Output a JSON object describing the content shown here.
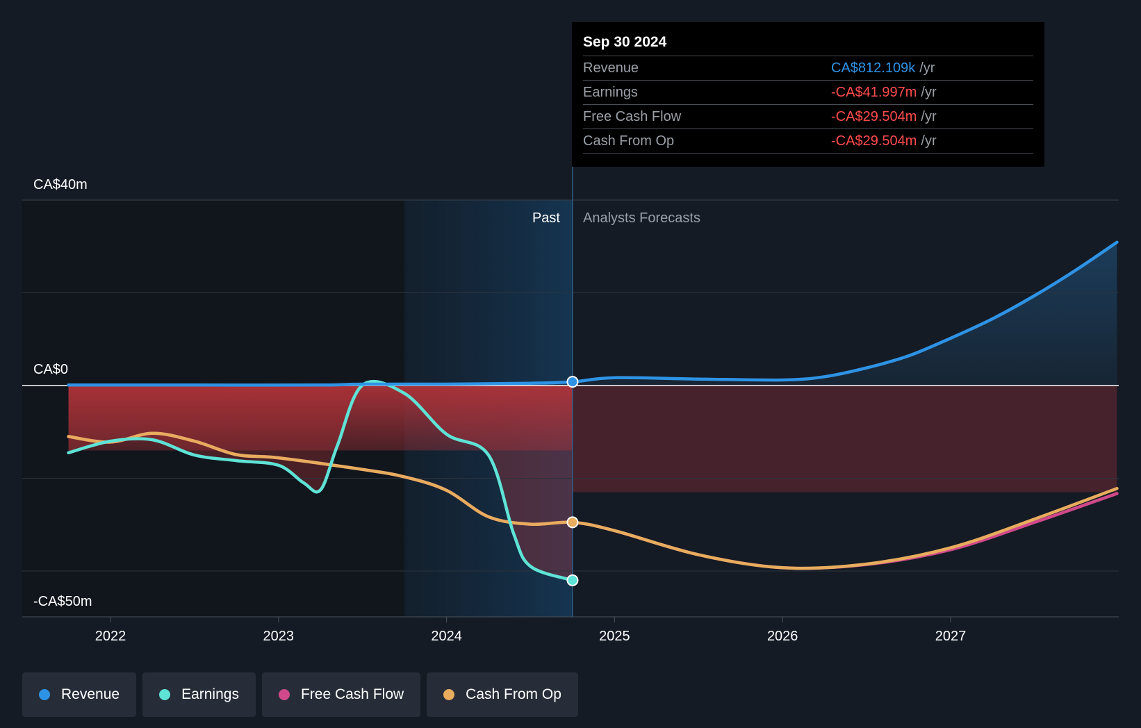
{
  "colors": {
    "background": "#151b24",
    "revenue": "#2e93e5",
    "earnings": "#5ee3d6",
    "free_cash_flow": "#d0498b",
    "cash_from_op": "#e8ac5e",
    "negative": "#ff4c4c"
  },
  "tooltip": {
    "date": "Sep 30 2024",
    "rows": [
      {
        "label": "Revenue",
        "value": "CA$812.109k",
        "unit": "/yr",
        "tone": "revenue"
      },
      {
        "label": "Earnings",
        "value": "-CA$41.997m",
        "unit": "/yr",
        "tone": "negative"
      },
      {
        "label": "Free Cash Flow",
        "value": "-CA$29.504m",
        "unit": "/yr",
        "tone": "negative"
      },
      {
        "label": "Cash From Op",
        "value": "-CA$29.504m",
        "unit": "/yr",
        "tone": "negative"
      }
    ]
  },
  "legend": [
    {
      "label": "Revenue",
      "color": "#2e93e5"
    },
    {
      "label": "Earnings",
      "color": "#5ee3d6"
    },
    {
      "label": "Free Cash Flow",
      "color": "#d0498b"
    },
    {
      "label": "Cash From Op",
      "color": "#e8ac5e"
    }
  ],
  "chart_data": {
    "type": "line",
    "title": "",
    "xlabel": "",
    "ylabel": "",
    "y_tick_labels": [
      "CA$40m",
      "CA$0",
      "-CA$50m"
    ],
    "y_ticks": [
      40,
      0,
      -50
    ],
    "ylim": [
      -50,
      40
    ],
    "xlim": [
      2021.6,
      2027.99
    ],
    "x_ticks": [
      2022,
      2023,
      2024,
      2025,
      2026,
      2027
    ],
    "x_tick_labels": [
      "2022",
      "2023",
      "2024",
      "2025",
      "2026",
      "2027"
    ],
    "past_label": "Past",
    "forecast_label": "Analysts Forecasts",
    "divider_x": 2024.75,
    "shaded_past_start": 2023.75,
    "series": [
      {
        "name": "Revenue",
        "key": "revenue",
        "points": [
          [
            2021.75,
            0.1
          ],
          [
            2022.5,
            0.1
          ],
          [
            2023.25,
            0.1
          ],
          [
            2023.5,
            0.3
          ],
          [
            2024.0,
            0.3
          ],
          [
            2024.5,
            0.5
          ],
          [
            2024.75,
            0.8
          ],
          [
            2025.0,
            1.7
          ],
          [
            2025.5,
            1.4
          ],
          [
            2026.0,
            1.2
          ],
          [
            2026.25,
            1.9
          ],
          [
            2026.5,
            3.8
          ],
          [
            2026.75,
            6.4
          ],
          [
            2027.0,
            10.2
          ],
          [
            2027.25,
            14.4
          ],
          [
            2027.5,
            19.4
          ],
          [
            2027.75,
            25.0
          ],
          [
            2027.99,
            30.9
          ]
        ]
      },
      {
        "name": "Earnings",
        "key": "earnings",
        "points": [
          [
            2021.75,
            -14.5
          ],
          [
            2022.0,
            -12.0
          ],
          [
            2022.25,
            -11.7
          ],
          [
            2022.5,
            -15.0
          ],
          [
            2022.75,
            -16.2
          ],
          [
            2023.0,
            -17.2
          ],
          [
            2023.15,
            -21.0
          ],
          [
            2023.25,
            -22.5
          ],
          [
            2023.35,
            -13.0
          ],
          [
            2023.5,
            0.1
          ],
          [
            2023.75,
            -1.7
          ],
          [
            2024.0,
            -10.5
          ],
          [
            2024.25,
            -15.0
          ],
          [
            2024.4,
            -32.0
          ],
          [
            2024.5,
            -39.0
          ],
          [
            2024.75,
            -42.0
          ]
        ]
      },
      {
        "name": "Free Cash Flow",
        "key": "free_cash_flow",
        "points": [
          [
            2021.75,
            -11.0
          ],
          [
            2022.0,
            -12.2
          ],
          [
            2022.25,
            -10.3
          ],
          [
            2022.5,
            -12.0
          ],
          [
            2022.75,
            -14.9
          ],
          [
            2023.0,
            -15.6
          ],
          [
            2023.5,
            -18.1
          ],
          [
            2023.75,
            -19.7
          ],
          [
            2024.0,
            -22.6
          ],
          [
            2024.25,
            -28.3
          ],
          [
            2024.5,
            -29.9
          ],
          [
            2024.75,
            -29.5
          ],
          [
            2025.0,
            -31.3
          ],
          [
            2025.5,
            -36.5
          ],
          [
            2026.0,
            -39.3
          ],
          [
            2026.5,
            -38.6
          ],
          [
            2027.0,
            -35.4
          ],
          [
            2027.5,
            -29.5
          ],
          [
            2027.99,
            -23.3
          ]
        ]
      },
      {
        "name": "Cash From Op",
        "key": "cash_from_op",
        "points": [
          [
            2021.75,
            -11.0
          ],
          [
            2022.0,
            -12.2
          ],
          [
            2022.25,
            -10.3
          ],
          [
            2022.5,
            -12.0
          ],
          [
            2022.75,
            -14.9
          ],
          [
            2023.0,
            -15.6
          ],
          [
            2023.5,
            -18.1
          ],
          [
            2023.75,
            -19.7
          ],
          [
            2024.0,
            -22.6
          ],
          [
            2024.25,
            -28.3
          ],
          [
            2024.5,
            -29.9
          ],
          [
            2024.75,
            -29.5
          ],
          [
            2025.0,
            -31.3
          ],
          [
            2025.5,
            -36.5
          ],
          [
            2026.0,
            -39.3
          ],
          [
            2026.5,
            -38.5
          ],
          [
            2027.0,
            -35.0
          ],
          [
            2027.5,
            -28.8
          ],
          [
            2027.99,
            -22.2
          ]
        ]
      }
    ],
    "highlight_x": 2024.75
  }
}
